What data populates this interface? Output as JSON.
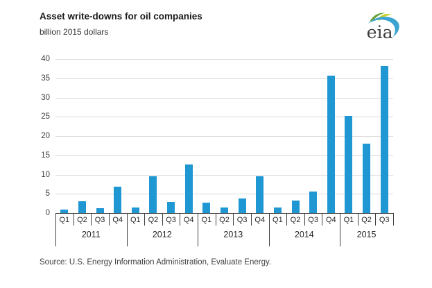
{
  "header": {
    "title": "Asset write-downs for oil companies",
    "subtitle": "billion 2015 dollars",
    "logo_text": "eia"
  },
  "source_line": "Source:  U.S. Energy Information Administration, Evaluate Energy.",
  "colors": {
    "bar": "#1f97d3",
    "gridline": "#d9d9d9",
    "axis": "#404040",
    "logo_green": "#67a33c",
    "logo_lime": "#c9d32f",
    "logo_blue": "#3ba3d0",
    "logo_text": "#3d3d3d"
  },
  "chart_data": {
    "type": "bar",
    "title": "Asset write-downs for oil companies",
    "ylabel": "billion 2015 dollars",
    "xlabel": "",
    "ylim": [
      0,
      40
    ],
    "yticks": [
      0,
      5,
      10,
      15,
      20,
      25,
      30,
      35,
      40
    ],
    "grid": "horizontal",
    "legend": "none",
    "groups": [
      {
        "year": "2011",
        "quarters": [
          "Q1",
          "Q2",
          "Q3",
          "Q4"
        ],
        "values": [
          0.9,
          3.1,
          1.3,
          6.8
        ]
      },
      {
        "year": "2012",
        "quarters": [
          "Q1",
          "Q2",
          "Q3",
          "Q4"
        ],
        "values": [
          1.5,
          9.5,
          2.9,
          12.7
        ]
      },
      {
        "year": "2013",
        "quarters": [
          "Q1",
          "Q2",
          "Q3",
          "Q4"
        ],
        "values": [
          2.7,
          1.4,
          3.7,
          9.6
        ]
      },
      {
        "year": "2014",
        "quarters": [
          "Q1",
          "Q2",
          "Q3",
          "Q4"
        ],
        "values": [
          1.4,
          3.2,
          5.6,
          35.7
        ]
      },
      {
        "year": "2015",
        "quarters": [
          "Q1",
          "Q2",
          "Q3"
        ],
        "values": [
          25.3,
          18.1,
          38.2
        ]
      }
    ]
  }
}
